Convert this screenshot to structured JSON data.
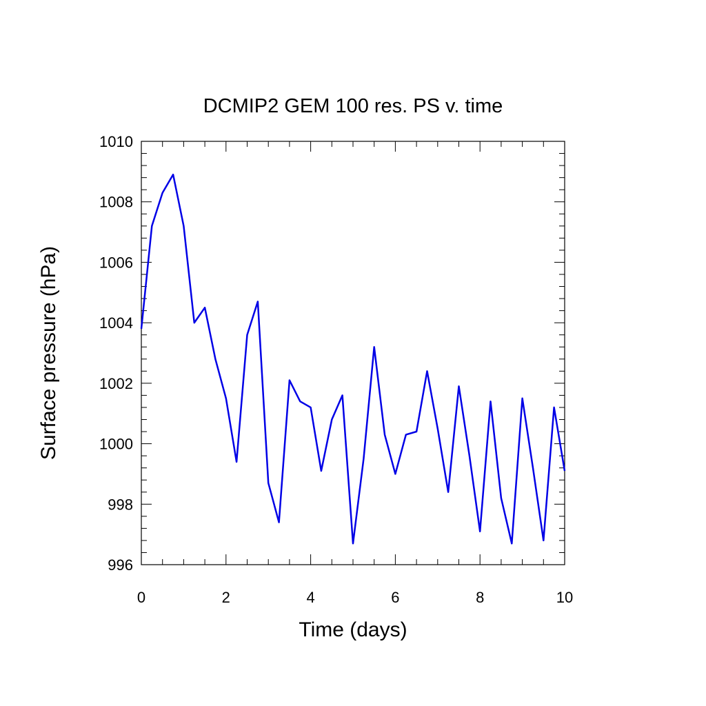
{
  "chart_data": {
    "type": "line",
    "title": "DCMIP2 GEM 100 res. PS v. time",
    "xlabel": "Time (days)",
    "ylabel": "Surface pressure (hPa)",
    "xlim": [
      0,
      10
    ],
    "ylim": [
      996,
      1010
    ],
    "xticks": [
      0,
      2,
      4,
      6,
      8,
      10
    ],
    "yticks": [
      996,
      998,
      1000,
      1002,
      1004,
      1006,
      1008,
      1010
    ],
    "x_minor_step": 0.5,
    "y_minor_step": 0.4,
    "grid": false,
    "line_color": "#0000e6",
    "series": [
      {
        "x": [
          0,
          0.25,
          0.5,
          0.75,
          1.0,
          1.25,
          1.5,
          1.75,
          2.0,
          2.25,
          2.5,
          2.75,
          3.0,
          3.25,
          3.5,
          3.75,
          4.0,
          4.25,
          4.5,
          4.75,
          5.0,
          5.25,
          5.5,
          5.75,
          6.0,
          6.25,
          6.5,
          6.75,
          7.0,
          7.25,
          7.5,
          7.75,
          8.0,
          8.25,
          8.5,
          8.75,
          9.0,
          9.25,
          9.5,
          9.75,
          10.0
        ],
        "y": [
          1003.8,
          1007.2,
          1008.3,
          1008.9,
          1007.2,
          1004.0,
          1004.5,
          1002.8,
          1001.5,
          999.4,
          1003.6,
          1004.7,
          998.7,
          997.4,
          1002.1,
          1001.4,
          1001.2,
          999.1,
          1000.8,
          1001.6,
          996.7,
          999.5,
          1003.2,
          1000.3,
          999.0,
          1000.3,
          1000.4,
          1002.4,
          1000.5,
          998.4,
          1001.9,
          999.6,
          997.1,
          1001.4,
          998.2,
          996.7,
          1001.5,
          999.2,
          996.8,
          1001.2,
          999.1
        ]
      }
    ]
  }
}
